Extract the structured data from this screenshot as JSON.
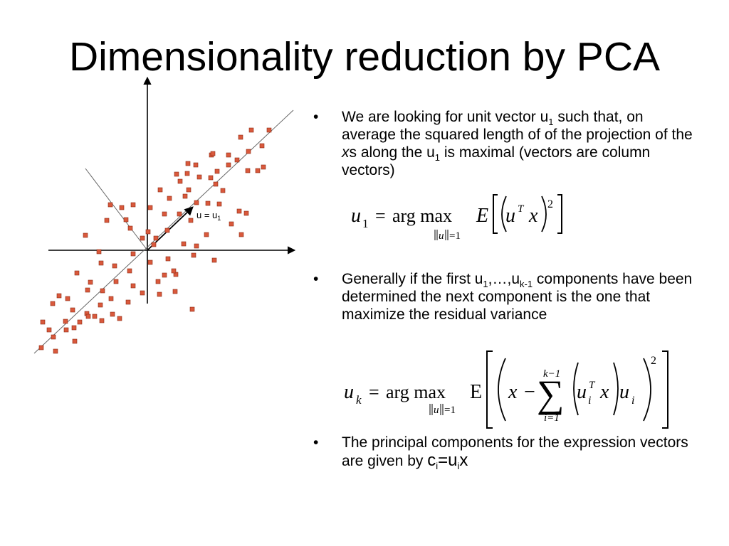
{
  "slide": {
    "title": "Dimensionality reduction by PCA"
  },
  "figure": {
    "axis_label_prefix": "u = u",
    "axis_label_sub": "1",
    "point_color": "#d9593c",
    "point_count": 99
  },
  "bullets": [
    {
      "marker": "•",
      "line1_a": "We are looking for unit vector u",
      "line1_sub": "1",
      "line1_b": " such that, on average the squared length of of the projection of the ",
      "italic_x": "x",
      "line1_c": "s along the u",
      "line1_sub2": "1",
      "line1_d": " is maximal (vectors are column vectors)"
    },
    {
      "marker": "•",
      "a": "Generally if the first u",
      "sub1": "1",
      "b": ",…,u",
      "sub2": "k-1",
      "c": " components have been determined the next component is the one that maximize the residual variance"
    },
    {
      "marker": "•",
      "a": "The principal components for the expression vectors are given by ",
      "c": "c",
      "sub1": "i",
      "eq": "=u",
      "sub2": "i",
      "x": "x"
    }
  ],
  "equation1": {
    "lhs": "u",
    "lhs_sub": "1",
    "equals": "=",
    "argmax": "arg max",
    "constraint_u": "u",
    "constraint_rhs": "=1",
    "expect": "E",
    "u": "u",
    "T": "T",
    "x": "x",
    "power": "2"
  },
  "equation2": {
    "lhs": "u",
    "lhs_sub": "k",
    "equals": "=",
    "argmax": "arg max",
    "constraint_u": "u",
    "constraint_rhs": "=1",
    "expect": "E",
    "x": "x",
    "minus": "−",
    "sigma": "∑",
    "upper": "k−1",
    "lower": "i=1",
    "u": "u",
    "i": "i",
    "T": "T",
    "power": "2"
  }
}
